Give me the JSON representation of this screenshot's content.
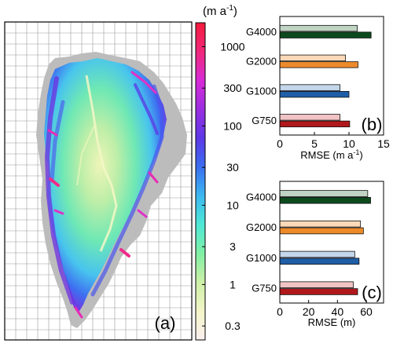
{
  "chart_data": [
    {
      "panel": "a",
      "type": "heatmap",
      "panel_label": "(a)",
      "colorbar": {
        "unit_label": "(m a",
        "unit_superscript": "-1",
        "unit_close": ")",
        "scale": "log",
        "range": [
          0.2,
          2000
        ],
        "ticks": [
          "1000",
          "300",
          "100",
          "30",
          "10",
          "3",
          "1",
          "0.3"
        ],
        "tick_values": [
          1000,
          300,
          100,
          30,
          10,
          3,
          1,
          0.3
        ],
        "colors": [
          "#fbeff0",
          "#f3f5c8",
          "#cdf0a6",
          "#7ff0a4",
          "#4ee8d6",
          "#3cb8f0",
          "#3a6ef0",
          "#5c38e8",
          "#9a2ee0",
          "#d82ad8",
          "#f0287a",
          "#f41a3c"
        ]
      }
    },
    {
      "panel": "b",
      "type": "bar",
      "orientation": "horizontal",
      "panel_label": "(b)",
      "categories": [
        "G4000",
        "G2000",
        "G1000",
        "G750"
      ],
      "series_a_values": [
        11.2,
        9.5,
        8.7,
        8.7
      ],
      "series_b_values": [
        13.2,
        11.3,
        10.0,
        10.1
      ],
      "colors_a": [
        "#c0d4c3",
        "#fbd9b9",
        "#c3d6ea",
        "#f1c3c4"
      ],
      "colors_b": [
        "#0c4a1e",
        "#ec8a2a",
        "#1f5ea6",
        "#b0181c"
      ],
      "xlim": [
        0,
        15
      ],
      "xticks": [
        "0",
        "5",
        "10",
        "15"
      ],
      "xtick_values": [
        0,
        5,
        10,
        15
      ],
      "xlabel": "RMSE (m a",
      "xlabel_superscript": "-1",
      "xlabel_close": ")"
    },
    {
      "panel": "c",
      "type": "bar",
      "orientation": "horizontal",
      "panel_label": "(c)",
      "categories": [
        "G4000",
        "G2000",
        "G1000",
        "G750"
      ],
      "series_a_values": [
        61,
        56,
        52,
        51
      ],
      "series_b_values": [
        63,
        58,
        55,
        54
      ],
      "colors_a": [
        "#c0d4c3",
        "#fbd9b9",
        "#c3d6ea",
        "#f1c3c4"
      ],
      "colors_b": [
        "#0c4a1e",
        "#ec8a2a",
        "#1f5ea6",
        "#b0181c"
      ],
      "xlim": [
        0,
        72
      ],
      "xticks": [
        "0",
        "20",
        "40",
        "60"
      ],
      "xtick_values": [
        0,
        20,
        40,
        60
      ],
      "xlabel": "RMSE (m)"
    }
  ]
}
